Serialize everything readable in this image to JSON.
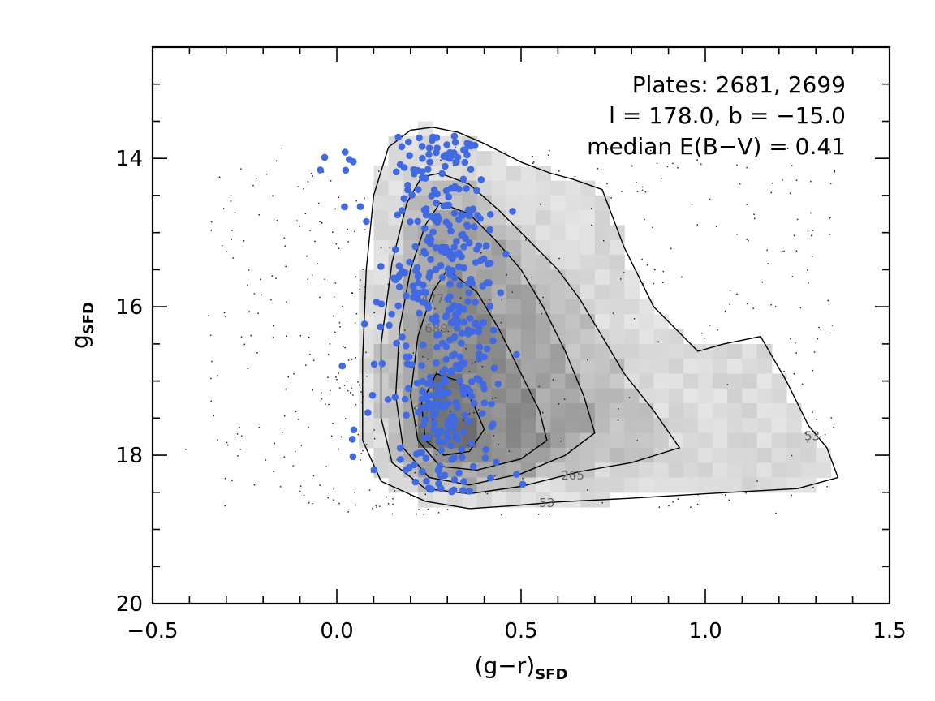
{
  "chart_data": {
    "type": "scatter",
    "title": "",
    "xlabel": "(g−r)",
    "xlabel_sub": "SFD",
    "ylabel": "g",
    "ylabel_sub": "SFD",
    "xlim": [
      -0.5,
      1.5
    ],
    "ylim": [
      20.0,
      12.5
    ],
    "x_ticks": [
      {
        "value": -0.5,
        "label": "−0.5"
      },
      {
        "value": 0.0,
        "label": "0.0"
      },
      {
        "value": 0.5,
        "label": "0.5"
      },
      {
        "value": 1.0,
        "label": "1.0"
      },
      {
        "value": 1.5,
        "label": "1.5"
      }
    ],
    "y_ticks": [
      {
        "value": 14,
        "label": "14"
      },
      {
        "value": 16,
        "label": "16"
      },
      {
        "value": 18,
        "label": "18"
      },
      {
        "value": 20,
        "label": "20"
      }
    ],
    "annotations": [
      "Plates: 2681, 2699",
      "l = 178.0, b = −15.0",
      "median E(B−V) = 0.41"
    ],
    "contours": [
      {
        "level": 53,
        "label": "53",
        "points": [
          [
            0.26,
            13.58
          ],
          [
            0.33,
            13.65
          ],
          [
            0.4,
            13.8
          ],
          [
            0.5,
            14.05
          ],
          [
            0.58,
            14.2
          ],
          [
            0.64,
            14.28
          ],
          [
            0.72,
            14.42
          ],
          [
            0.78,
            15.2
          ],
          [
            0.86,
            16.0
          ],
          [
            0.98,
            16.6
          ],
          [
            1.05,
            16.5
          ],
          [
            1.15,
            16.4
          ],
          [
            1.22,
            17.0
          ],
          [
            1.28,
            17.6
          ],
          [
            1.33,
            17.9
          ],
          [
            1.36,
            18.3
          ],
          [
            1.25,
            18.45
          ],
          [
            1.0,
            18.52
          ],
          [
            0.8,
            18.58
          ],
          [
            0.6,
            18.63
          ],
          [
            0.48,
            18.68
          ],
          [
            0.36,
            18.72
          ],
          [
            0.24,
            18.62
          ],
          [
            0.12,
            18.35
          ],
          [
            0.07,
            17.8
          ],
          [
            0.07,
            16.7
          ],
          [
            0.08,
            15.5
          ],
          [
            0.1,
            14.5
          ],
          [
            0.14,
            13.85
          ],
          [
            0.2,
            13.62
          ],
          [
            0.26,
            13.58
          ]
        ],
        "label_at": [
          0.57,
          18.65
        ],
        "label2_at": [
          1.29,
          17.75
        ]
      },
      {
        "level": 265,
        "label": "265",
        "points": [
          [
            0.28,
            14.2
          ],
          [
            0.36,
            14.35
          ],
          [
            0.44,
            14.7
          ],
          [
            0.52,
            15.1
          ],
          [
            0.6,
            15.5
          ],
          [
            0.66,
            15.9
          ],
          [
            0.72,
            16.4
          ],
          [
            0.78,
            16.9
          ],
          [
            0.86,
            17.4
          ],
          [
            0.93,
            17.9
          ],
          [
            0.8,
            18.1
          ],
          [
            0.66,
            18.22
          ],
          [
            0.5,
            18.42
          ],
          [
            0.36,
            18.52
          ],
          [
            0.24,
            18.45
          ],
          [
            0.15,
            18.1
          ],
          [
            0.12,
            17.5
          ],
          [
            0.12,
            16.5
          ],
          [
            0.15,
            15.4
          ],
          [
            0.19,
            14.6
          ],
          [
            0.23,
            14.25
          ],
          [
            0.28,
            14.2
          ]
        ],
        "label_at": [
          0.64,
          18.28
        ]
      },
      {
        "level": 477,
        "label": "477",
        "points": [
          [
            0.28,
            14.6
          ],
          [
            0.36,
            14.75
          ],
          [
            0.43,
            15.1
          ],
          [
            0.5,
            15.5
          ],
          [
            0.56,
            16.0
          ],
          [
            0.62,
            16.6
          ],
          [
            0.67,
            17.2
          ],
          [
            0.7,
            17.7
          ],
          [
            0.62,
            18.0
          ],
          [
            0.5,
            18.25
          ],
          [
            0.36,
            18.4
          ],
          [
            0.25,
            18.3
          ],
          [
            0.18,
            17.9
          ],
          [
            0.16,
            17.2
          ],
          [
            0.17,
            16.3
          ],
          [
            0.2,
            15.5
          ],
          [
            0.24,
            14.9
          ],
          [
            0.28,
            14.6
          ]
        ],
        "label_at": [
          0.26,
          15.9
        ]
      },
      {
        "level": 689,
        "label": "689",
        "points": [
          [
            0.3,
            15.5
          ],
          [
            0.38,
            15.8
          ],
          [
            0.44,
            16.3
          ],
          [
            0.5,
            16.9
          ],
          [
            0.55,
            17.4
          ],
          [
            0.57,
            17.8
          ],
          [
            0.5,
            18.05
          ],
          [
            0.38,
            18.2
          ],
          [
            0.28,
            18.15
          ],
          [
            0.22,
            17.8
          ],
          [
            0.2,
            17.2
          ],
          [
            0.22,
            16.4
          ],
          [
            0.26,
            15.8
          ],
          [
            0.3,
            15.5
          ]
        ],
        "label_at": [
          0.27,
          16.3
        ]
      },
      {
        "level": 901,
        "label": "901",
        "points": [
          [
            0.27,
            16.9
          ],
          [
            0.33,
            17.0
          ],
          [
            0.37,
            17.3
          ],
          [
            0.4,
            17.65
          ],
          [
            0.36,
            17.95
          ],
          [
            0.29,
            18.0
          ],
          [
            0.24,
            17.8
          ],
          [
            0.23,
            17.3
          ],
          [
            0.27,
            16.9
          ]
        ],
        "label_at": [
          0.24,
          17.4
        ]
      }
    ]
  }
}
